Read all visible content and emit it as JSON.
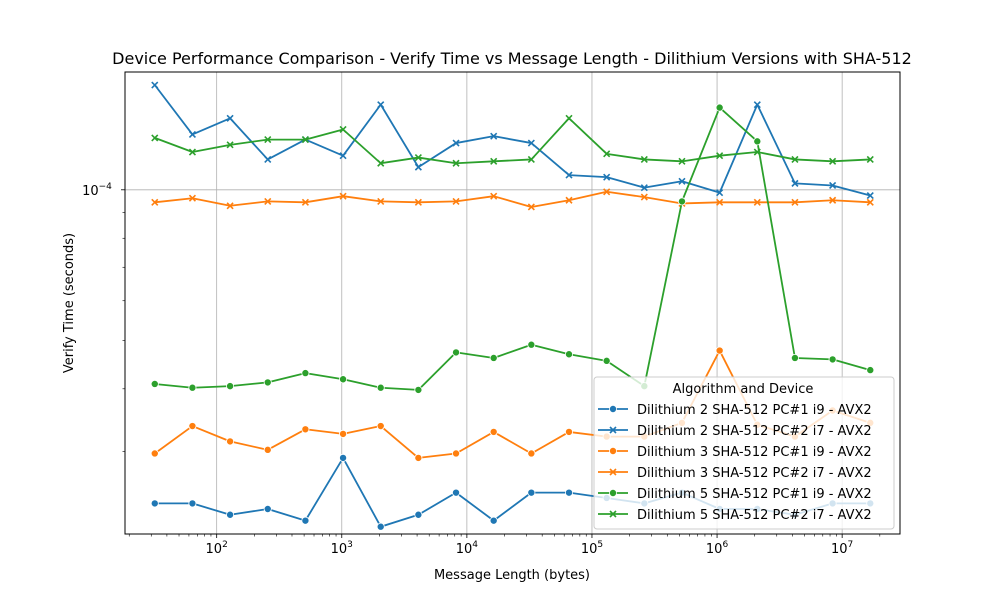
{
  "chart_data": {
    "type": "line",
    "title": "Device Performance Comparison - Verify Time vs Message Length - Dilithium Versions with SHA-512",
    "xlabel": "Message Length (bytes)",
    "ylabel": "Verify Time (seconds)",
    "x_scale": "log",
    "y_scale": "log",
    "grid": true,
    "x_ticks": [
      {
        "value": 100,
        "base": "10",
        "exp": "2"
      },
      {
        "value": 1000,
        "base": "10",
        "exp": "3"
      },
      {
        "value": 10000,
        "base": "10",
        "exp": "4"
      },
      {
        "value": 100000,
        "base": "10",
        "exp": "5"
      },
      {
        "value": 1000000,
        "base": "10",
        "exp": "6"
      },
      {
        "value": 10000000,
        "base": "10",
        "exp": "7"
      }
    ],
    "y_ticks": [
      {
        "value": 0.0001,
        "base": "10",
        "exp": "−4"
      }
    ],
    "x": [
      32,
      64,
      128,
      256,
      512,
      1024,
      2048,
      4096,
      8192,
      16384,
      32768,
      65536,
      131072,
      262144,
      524288,
      1048576,
      2097152,
      4194304,
      8388608,
      16777216
    ],
    "legend": {
      "title": "Algorithm and Device",
      "position": "lower-right"
    },
    "series": [
      {
        "name": "Dilithium 2 SHA-512 PC#1 i9 - AVX2",
        "color": "#1f77b4",
        "marker": "circle",
        "values": [
          2.36e-05,
          2.36e-05,
          2.24e-05,
          2.3e-05,
          2.18e-05,
          2.91e-05,
          2.12e-05,
          2.24e-05,
          2.48e-05,
          2.18e-05,
          2.48e-05,
          2.48e-05,
          2.42e-05,
          2.36e-05,
          2.48e-05,
          2.3e-05,
          2.3e-05,
          2.24e-05,
          2.36e-05,
          2.36e-05
        ]
      },
      {
        "name": "Dilithium 2 SHA-512 PC#2 i7 - AVX2",
        "color": "#1f77b4",
        "marker": "x",
        "values": [
          0.000162,
          0.000129,
          0.000139,
          0.000115,
          0.000126,
          0.000117,
          0.000148,
          0.000111,
          0.000124,
          0.000128,
          0.000124,
          0.000107,
          0.000106,
          0.000101,
          0.000104,
          9.87e-05,
          0.000148,
          0.000103,
          0.000102,
          9.74e-05
        ]
      },
      {
        "name": "Dilithium 3 SHA-512 PC#1 i9 - AVX2",
        "color": "#ff7f0e",
        "marker": "circle",
        "values": [
          2.97e-05,
          3.37e-05,
          3.14e-05,
          3.02e-05,
          3.32e-05,
          3.25e-05,
          3.37e-05,
          2.91e-05,
          2.97e-05,
          3.28e-05,
          2.97e-05,
          3.28e-05,
          3.21e-05,
          3.21e-05,
          3.42e-05,
          4.77e-05,
          3.39e-05,
          3.21e-05,
          3.62e-05,
          3.42e-05
        ]
      },
      {
        "name": "Dilithium 3 SHA-512 PC#2 i7 - AVX2",
        "color": "#ff7f0e",
        "marker": "x",
        "values": [
          9.44e-05,
          9.62e-05,
          9.29e-05,
          9.48e-05,
          9.44e-05,
          9.71e-05,
          9.48e-05,
          9.44e-05,
          9.48e-05,
          9.71e-05,
          9.24e-05,
          9.53e-05,
          9.91e-05,
          9.67e-05,
          9.39e-05,
          9.44e-05,
          9.44e-05,
          9.44e-05,
          9.53e-05,
          9.44e-05
        ]
      },
      {
        "name": "Dilithium 5 SHA-512 PC#1 i9 - AVX2",
        "color": "#2ca02c",
        "marker": "circle",
        "values": [
          4.09e-05,
          4.02e-05,
          4.05e-05,
          4.12e-05,
          4.3e-05,
          4.18e-05,
          4.02e-05,
          3.98e-05,
          4.73e-05,
          4.61e-05,
          4.9e-05,
          4.69e-05,
          4.55e-05,
          4.05e-05,
          9.48e-05,
          0.000146,
          0.000125,
          4.61e-05,
          4.58e-05,
          4.36e-05
        ]
      },
      {
        "name": "Dilithium 5 SHA-512 PC#2 i7 - AVX2",
        "color": "#2ca02c",
        "marker": "x",
        "values": [
          0.000127,
          0.000119,
          0.000123,
          0.000126,
          0.000126,
          0.000132,
          0.000113,
          0.000116,
          0.000113,
          0.000114,
          0.000115,
          0.000139,
          0.000118,
          0.000115,
          0.000114,
          0.000117,
          0.000119,
          0.000115,
          0.000114,
          0.000115
        ]
      }
    ]
  }
}
